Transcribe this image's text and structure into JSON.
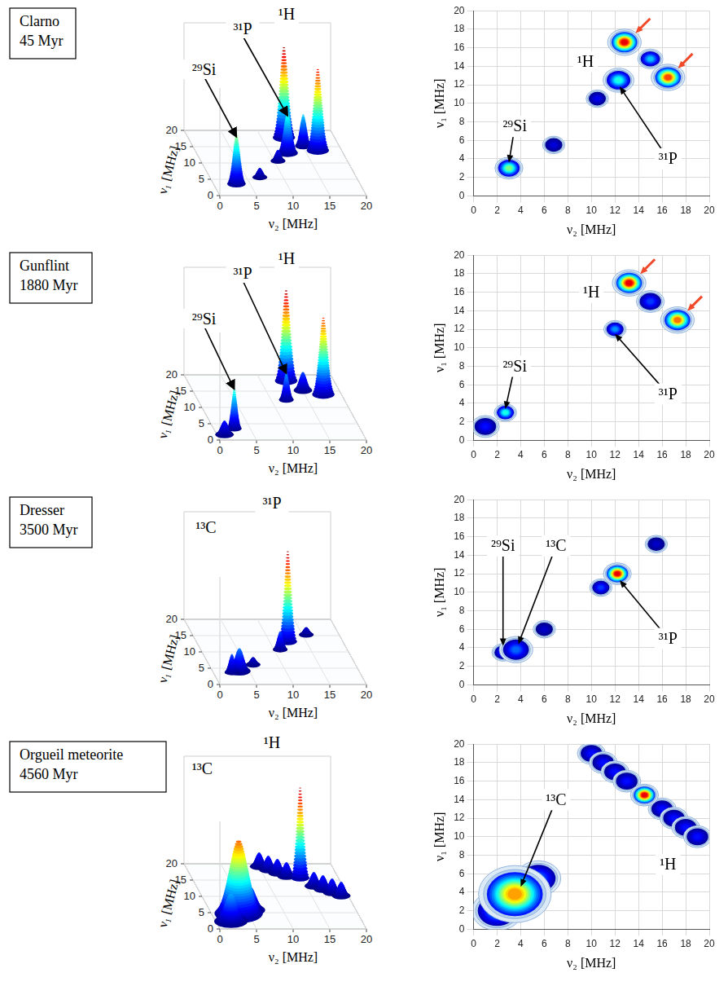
{
  "chart_data": [
    {
      "type": "surface",
      "title": "Clarno",
      "subtitle": "45 Myr",
      "x_label": "ν₂ [MHz]",
      "y_label": "ν₁ [MHz]",
      "xlim": [
        0,
        20
      ],
      "ylim": [
        0,
        20
      ],
      "xticks": [
        0,
        5,
        10,
        15,
        20
      ],
      "yticks": [
        0,
        5,
        10,
        15,
        20
      ],
      "grid": true,
      "peaks": [
        {
          "x": 3,
          "y": 3,
          "height": 0.55,
          "width": 0.5
        },
        {
          "x": 12.3,
          "y": 12.5,
          "height": 0.45,
          "width": 0.55
        },
        {
          "x": 12.8,
          "y": 16.6,
          "height": 1,
          "width": 0.6
        },
        {
          "x": 16.5,
          "y": 12.8,
          "height": 0.9,
          "width": 0.6
        },
        {
          "x": 15,
          "y": 14.8,
          "height": 0.35,
          "width": 0.45
        },
        {
          "x": 10.5,
          "y": 10.5,
          "height": 0.12,
          "width": 0.4
        },
        {
          "x": 6.8,
          "y": 5.5,
          "height": 0.1,
          "width": 0.4
        }
      ],
      "labels": [
        {
          "text": "²⁹Si",
          "x": 1.5,
          "y": 15,
          "z": 0.75,
          "arrow_to": [
            3,
            3,
            0.5
          ]
        },
        {
          "text": "³¹P",
          "x": 8,
          "y": 20,
          "z": 1.0,
          "arrow_to": [
            12.3,
            12.5,
            0.4
          ]
        },
        {
          "text": "¹H",
          "x": 14,
          "y": 20,
          "z": 1.15
        }
      ]
    },
    {
      "type": "contour",
      "x_label": "ν₂ [MHz]",
      "y_label": "ν₁ [MHz]",
      "xlim": [
        0,
        20
      ],
      "ylim": [
        0,
        20
      ],
      "xticks": [
        0,
        2,
        4,
        6,
        8,
        10,
        12,
        14,
        16,
        18,
        20
      ],
      "yticks": [
        0,
        2,
        4,
        6,
        8,
        10,
        12,
        14,
        16,
        18,
        20
      ],
      "grid": true,
      "peaks": [
        {
          "x": 3,
          "y": 3,
          "height": 0.55,
          "width": 0.5
        },
        {
          "x": 12.3,
          "y": 12.5,
          "height": 0.45,
          "width": 0.55
        },
        {
          "x": 12.8,
          "y": 16.6,
          "height": 1,
          "width": 0.6
        },
        {
          "x": 16.5,
          "y": 12.8,
          "height": 0.9,
          "width": 0.6
        },
        {
          "x": 15,
          "y": 14.8,
          "height": 0.35,
          "width": 0.45
        },
        {
          "x": 10.5,
          "y": 10.5,
          "height": 0.12,
          "width": 0.4
        },
        {
          "x": 6.8,
          "y": 5.5,
          "height": 0.1,
          "width": 0.4
        }
      ],
      "labels": [
        {
          "text": "¹H",
          "x": 9.5,
          "y": 14.5
        },
        {
          "text": "²⁹Si",
          "x": 3.5,
          "y": 7.5,
          "arrow_to": [
            3,
            3.6
          ]
        },
        {
          "text": "³¹P",
          "x": 16.5,
          "y": 4,
          "arrow_to": [
            12.4,
            11.8
          ]
        }
      ],
      "arrows": [
        {
          "x": 13.6,
          "y": 17.4,
          "color": "#f04a2a"
        },
        {
          "x": 17.2,
          "y": 13.6,
          "color": "#f04a2a"
        }
      ]
    },
    {
      "type": "surface",
      "title": "Gunflint",
      "subtitle": "1880 Myr",
      "x_label": "ν₂ [MHz]",
      "y_label": "ν₁ [MHz]",
      "xlim": [
        0,
        20
      ],
      "ylim": [
        0,
        20
      ],
      "xticks": [
        0,
        5,
        10,
        15,
        20
      ],
      "yticks": [
        0,
        5,
        10,
        15,
        20
      ],
      "grid": true,
      "peaks": [
        {
          "x": 2.7,
          "y": 3,
          "height": 0.45,
          "width": 0.4
        },
        {
          "x": 12,
          "y": 12,
          "height": 0.3,
          "width": 0.4
        },
        {
          "x": 13.2,
          "y": 17,
          "height": 1,
          "width": 0.6
        },
        {
          "x": 17.3,
          "y": 13,
          "height": 0.85,
          "width": 0.6
        },
        {
          "x": 1,
          "y": 1.5,
          "height": 0.15,
          "width": 0.5
        },
        {
          "x": 15,
          "y": 15,
          "height": 0.2,
          "width": 0.5
        }
      ],
      "labels": [
        {
          "text": "²⁹Si",
          "x": 1.5,
          "y": 15,
          "z": 0.7,
          "arrow_to": [
            2.7,
            3,
            0.42
          ]
        },
        {
          "text": "³¹P",
          "x": 8,
          "y": 20,
          "z": 1.0,
          "arrow_to": [
            12,
            12,
            0.28
          ]
        },
        {
          "text": "¹H",
          "x": 14,
          "y": 20,
          "z": 1.15
        }
      ]
    },
    {
      "type": "contour",
      "x_label": "ν₂ [MHz]",
      "y_label": "ν₁ [MHz]",
      "xlim": [
        0,
        20
      ],
      "ylim": [
        0,
        20
      ],
      "xticks": [
        0,
        2,
        4,
        6,
        8,
        10,
        12,
        14,
        16,
        18,
        20
      ],
      "yticks": [
        0,
        2,
        4,
        6,
        8,
        10,
        12,
        14,
        16,
        18,
        20
      ],
      "grid": true,
      "peaks": [
        {
          "x": 2.7,
          "y": 3,
          "height": 0.45,
          "width": 0.4
        },
        {
          "x": 12,
          "y": 12,
          "height": 0.3,
          "width": 0.4
        },
        {
          "x": 13.2,
          "y": 17,
          "height": 1,
          "width": 0.6
        },
        {
          "x": 17.3,
          "y": 13,
          "height": 0.85,
          "width": 0.6
        },
        {
          "x": 1,
          "y": 1.5,
          "height": 0.15,
          "width": 0.5
        },
        {
          "x": 15,
          "y": 15,
          "height": 0.2,
          "width": 0.5
        }
      ],
      "labels": [
        {
          "text": "¹H",
          "x": 10,
          "y": 16
        },
        {
          "text": "²⁹Si",
          "x": 3.5,
          "y": 8,
          "arrow_to": [
            2.7,
            3.4
          ]
        },
        {
          "text": "³¹P",
          "x": 16.5,
          "y": 5,
          "arrow_to": [
            12,
            11.5
          ]
        }
      ],
      "arrows": [
        {
          "x": 14,
          "y": 17.8,
          "color": "#f04a2a"
        },
        {
          "x": 18,
          "y": 13.8,
          "color": "#f04a2a"
        }
      ]
    },
    {
      "type": "surface",
      "title": "Dresser",
      "subtitle": "3500 Myr",
      "x_label": "ν₂ [MHz]",
      "y_label": "ν₁ [MHz]",
      "xlim": [
        0,
        20
      ],
      "ylim": [
        0,
        20
      ],
      "xticks": [
        0,
        5,
        10,
        15,
        20
      ],
      "yticks": [
        0,
        5,
        10,
        15,
        20
      ],
      "grid": true,
      "peaks": [
        {
          "x": 12.2,
          "y": 12,
          "height": 1,
          "width": 0.5
        },
        {
          "x": 3.6,
          "y": 3.8,
          "height": 0.25,
          "width": 0.6
        },
        {
          "x": 2.5,
          "y": 3.5,
          "height": 0.2,
          "width": 0.4
        },
        {
          "x": 10.8,
          "y": 10.5,
          "height": 0.2,
          "width": 0.4
        },
        {
          "x": 15.5,
          "y": 15.2,
          "height": 0.08,
          "width": 0.4
        },
        {
          "x": 6,
          "y": 6,
          "height": 0.08,
          "width": 0.4
        }
      ],
      "labels": [
        {
          "text": "¹³C",
          "x": 3,
          "y": 20,
          "z": 0.9
        },
        {
          "text": "³¹P",
          "x": 12,
          "y": 20,
          "z": 1.15
        }
      ]
    },
    {
      "type": "contour",
      "x_label": "ν₂ [MHz]",
      "y_label": "ν₁ [MHz]",
      "xlim": [
        0,
        20
      ],
      "ylim": [
        0,
        20
      ],
      "xticks": [
        0,
        2,
        4,
        6,
        8,
        10,
        12,
        14,
        16,
        18,
        20
      ],
      "yticks": [
        0,
        2,
        4,
        6,
        8,
        10,
        12,
        14,
        16,
        18,
        20
      ],
      "grid": true,
      "peaks": [
        {
          "x": 12.2,
          "y": 12,
          "height": 1,
          "width": 0.5
        },
        {
          "x": 3.6,
          "y": 3.8,
          "height": 0.25,
          "width": 0.6
        },
        {
          "x": 2.5,
          "y": 3.5,
          "height": 0.2,
          "width": 0.4
        },
        {
          "x": 10.8,
          "y": 10.5,
          "height": 0.2,
          "width": 0.4
        },
        {
          "x": 15.5,
          "y": 15.2,
          "height": 0.08,
          "width": 0.4
        },
        {
          "x": 6,
          "y": 6,
          "height": 0.08,
          "width": 0.4
        }
      ],
      "labels": [
        {
          "text": "²⁹Si",
          "x": 2.5,
          "y": 15,
          "arrow_to": [
            2.5,
            4.2
          ]
        },
        {
          "text": "¹³C",
          "x": 7,
          "y": 15,
          "arrow_to": [
            3.8,
            4.4
          ]
        },
        {
          "text": "³¹P",
          "x": 16.5,
          "y": 5,
          "arrow_to": [
            12.4,
            11.3
          ]
        }
      ]
    },
    {
      "type": "surface",
      "title": "Orgueil meteorite",
      "subtitle": "4560 Myr",
      "x_label": "ν₂ [MHz]",
      "y_label": "ν₁ [MHz]",
      "xlim": [
        0,
        20
      ],
      "ylim": [
        0,
        20
      ],
      "xticks": [
        0,
        5,
        10,
        15,
        20
      ],
      "yticks": [
        0,
        5,
        10,
        15,
        20
      ],
      "grid": true,
      "peaks": [
        {
          "x": 3.5,
          "y": 3.8,
          "height": 0.8,
          "width": 1.3
        },
        {
          "x": 2,
          "y": 2,
          "height": 0.3,
          "width": 0.9
        },
        {
          "x": 5.5,
          "y": 5.5,
          "height": 0.25,
          "width": 0.8
        },
        {
          "x": 14.5,
          "y": 14.5,
          "height": 1,
          "width": 0.5
        },
        {
          "x": 10,
          "y": 19,
          "height": 0.15,
          "width": 0.5
        },
        {
          "x": 11,
          "y": 18,
          "height": 0.15,
          "width": 0.5
        },
        {
          "x": 12,
          "y": 17,
          "height": 0.15,
          "width": 0.5
        },
        {
          "x": 13,
          "y": 16,
          "height": 0.15,
          "width": 0.5
        },
        {
          "x": 16,
          "y": 13,
          "height": 0.15,
          "width": 0.5
        },
        {
          "x": 17,
          "y": 12,
          "height": 0.15,
          "width": 0.5
        },
        {
          "x": 18,
          "y": 11,
          "height": 0.15,
          "width": 0.5
        },
        {
          "x": 19,
          "y": 10,
          "height": 0.15,
          "width": 0.5
        }
      ],
      "labels": [
        {
          "text": "¹³C",
          "x": 2,
          "y": 18,
          "z": 1.0
        },
        {
          "text": "¹H",
          "x": 12,
          "y": 20,
          "z": 1.2
        }
      ]
    },
    {
      "type": "contour",
      "x_label": "ν₂ [MHz]",
      "y_label": "ν₁ [MHz]",
      "xlim": [
        0,
        20
      ],
      "ylim": [
        0,
        20
      ],
      "xticks": [
        0,
        2,
        4,
        6,
        8,
        10,
        12,
        14,
        16,
        18,
        20
      ],
      "yticks": [
        0,
        2,
        4,
        6,
        8,
        10,
        12,
        14,
        16,
        18,
        20
      ],
      "grid": true,
      "peaks": [
        {
          "x": 3.5,
          "y": 3.8,
          "height": 0.8,
          "width": 1.3
        },
        {
          "x": 2,
          "y": 2,
          "height": 0.3,
          "width": 0.9
        },
        {
          "x": 5.5,
          "y": 5.5,
          "height": 0.25,
          "width": 0.8
        },
        {
          "x": 14.5,
          "y": 14.5,
          "height": 1,
          "width": 0.5
        },
        {
          "x": 10,
          "y": 19,
          "height": 0.15,
          "width": 0.5
        },
        {
          "x": 11,
          "y": 18,
          "height": 0.15,
          "width": 0.5
        },
        {
          "x": 12,
          "y": 17,
          "height": 0.15,
          "width": 0.5
        },
        {
          "x": 13,
          "y": 16,
          "height": 0.15,
          "width": 0.5
        },
        {
          "x": 16,
          "y": 13,
          "height": 0.15,
          "width": 0.5
        },
        {
          "x": 17,
          "y": 12,
          "height": 0.15,
          "width": 0.5
        },
        {
          "x": 18,
          "y": 11,
          "height": 0.15,
          "width": 0.5
        },
        {
          "x": 19,
          "y": 10,
          "height": 0.15,
          "width": 0.5
        }
      ],
      "labels": [
        {
          "text": "¹³C",
          "x": 7,
          "y": 14,
          "arrow_to": [
            4,
            4.6
          ]
        },
        {
          "text": "¹H",
          "x": 16.5,
          "y": 7
        }
      ]
    }
  ]
}
